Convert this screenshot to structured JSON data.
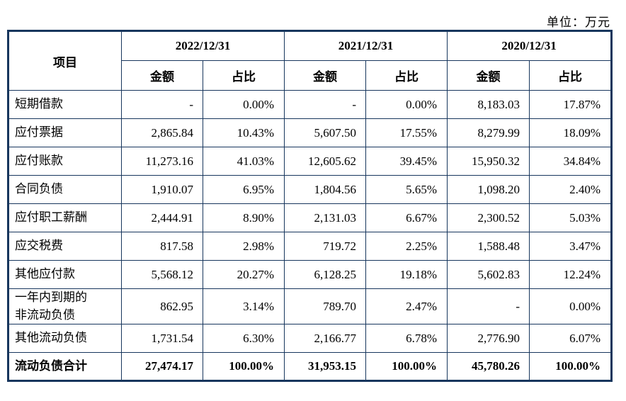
{
  "unit_label": "单位：万元",
  "colors": {
    "border": "#17365d",
    "text": "#000000",
    "background": "#ffffff"
  },
  "table": {
    "item_header": "项目",
    "col_groups": [
      {
        "period": "2022/12/31"
      },
      {
        "period": "2021/12/31"
      },
      {
        "period": "2020/12/31"
      }
    ],
    "sub_headers": {
      "amount": "金额",
      "ratio": "占比"
    },
    "rows": [
      {
        "label": "短期借款",
        "cells": [
          "-",
          "0.00%",
          "-",
          "0.00%",
          "8,183.03",
          "17.87%"
        ]
      },
      {
        "label": "应付票据",
        "cells": [
          "2,865.84",
          "10.43%",
          "5,607.50",
          "17.55%",
          "8,279.99",
          "18.09%"
        ]
      },
      {
        "label": "应付账款",
        "cells": [
          "11,273.16",
          "41.03%",
          "12,605.62",
          "39.45%",
          "15,950.32",
          "34.84%"
        ]
      },
      {
        "label": "合同负债",
        "cells": [
          "1,910.07",
          "6.95%",
          "1,804.56",
          "5.65%",
          "1,098.20",
          "2.40%"
        ]
      },
      {
        "label": "应付职工薪酬",
        "cells": [
          "2,444.91",
          "8.90%",
          "2,131.03",
          "6.67%",
          "2,300.52",
          "5.03%"
        ]
      },
      {
        "label": "应交税费",
        "cells": [
          "817.58",
          "2.98%",
          "719.72",
          "2.25%",
          "1,588.48",
          "3.47%"
        ]
      },
      {
        "label": "其他应付款",
        "cells": [
          "5,568.12",
          "20.27%",
          "6,128.25",
          "19.18%",
          "5,602.83",
          "12.24%"
        ]
      },
      {
        "label": "一年内到期的\n非流动负债",
        "cells": [
          "862.95",
          "3.14%",
          "789.70",
          "2.47%",
          "-",
          "0.00%"
        ]
      },
      {
        "label": "其他流动负债",
        "cells": [
          "1,731.54",
          "6.30%",
          "2,166.77",
          "6.78%",
          "2,776.90",
          "6.07%"
        ]
      },
      {
        "label": "流动负债合计",
        "bold": true,
        "cells": [
          "27,474.17",
          "100.00%",
          "31,953.15",
          "100.00%",
          "45,780.26",
          "100.00%"
        ]
      }
    ]
  }
}
